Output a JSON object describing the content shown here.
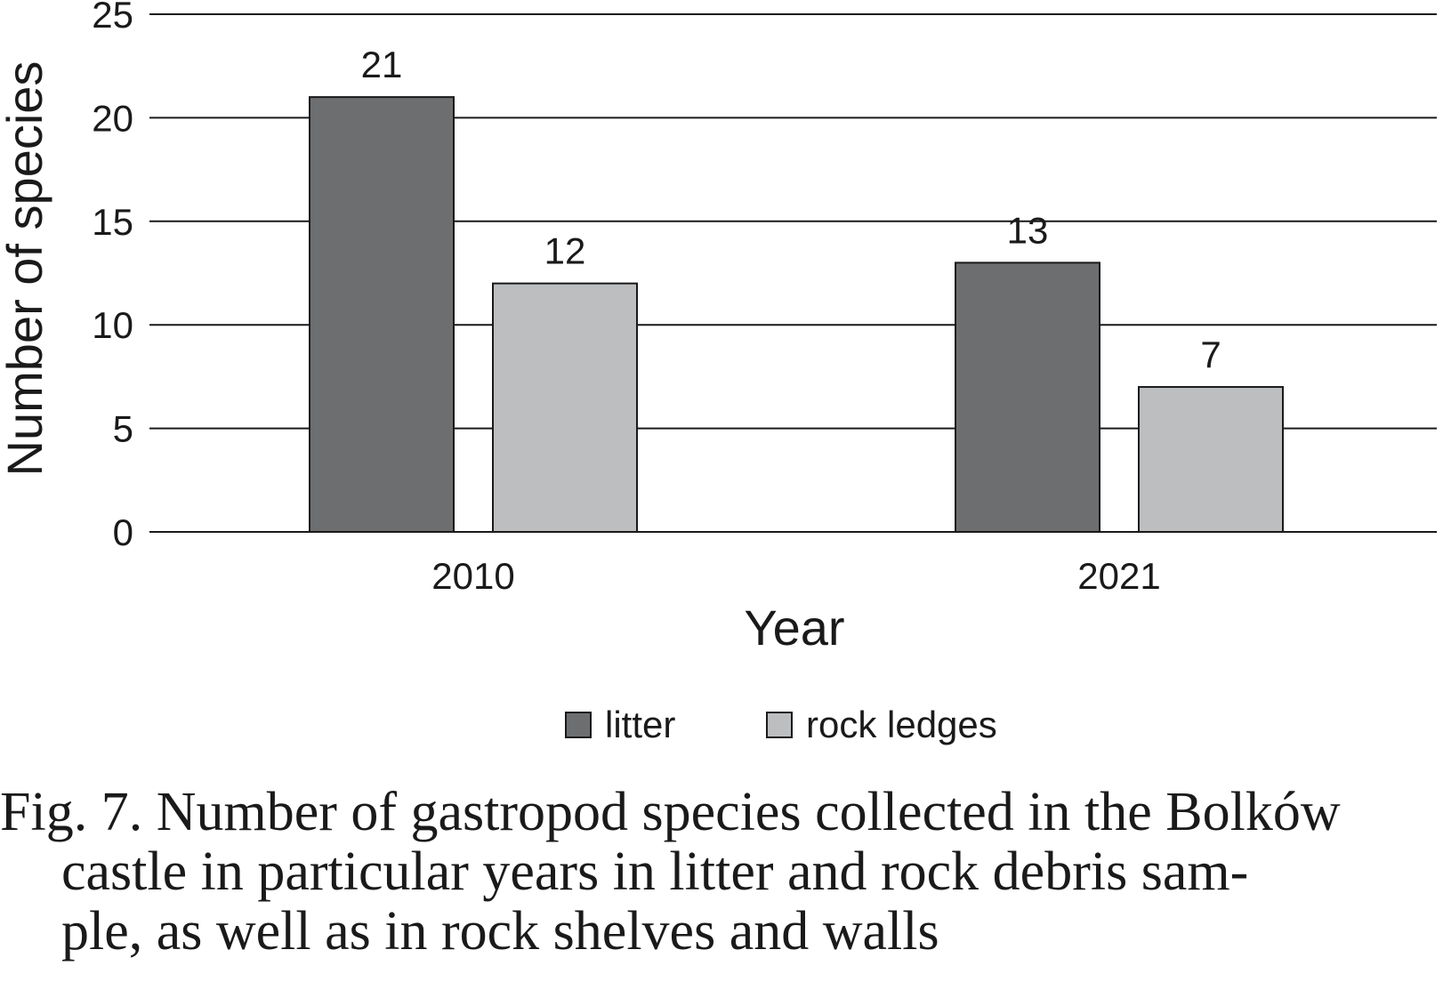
{
  "chart_data": {
    "type": "bar",
    "title": "",
    "xlabel": "Year",
    "ylabel": "Number of species",
    "categories": [
      "2010",
      "2021"
    ],
    "series": [
      {
        "name": "litter",
        "values": [
          21,
          13
        ],
        "color": "#6d6e70"
      },
      {
        "name": "rock ledges",
        "values": [
          12,
          7
        ],
        "color": "#bcbec0"
      }
    ],
    "ylim": [
      0,
      25
    ],
    "yticks": [
      "0",
      "5",
      "10",
      "15",
      "20",
      "25"
    ],
    "grid": true,
    "legend_position": "bottom",
    "data_labels": true
  },
  "caption": {
    "line1": "Fig. 7. Number of gastropod species collected in the Bolków",
    "line2": "castle in particular years in litter and rock debris sam-",
    "line3": "ple, as well as in rock shelves and walls"
  }
}
